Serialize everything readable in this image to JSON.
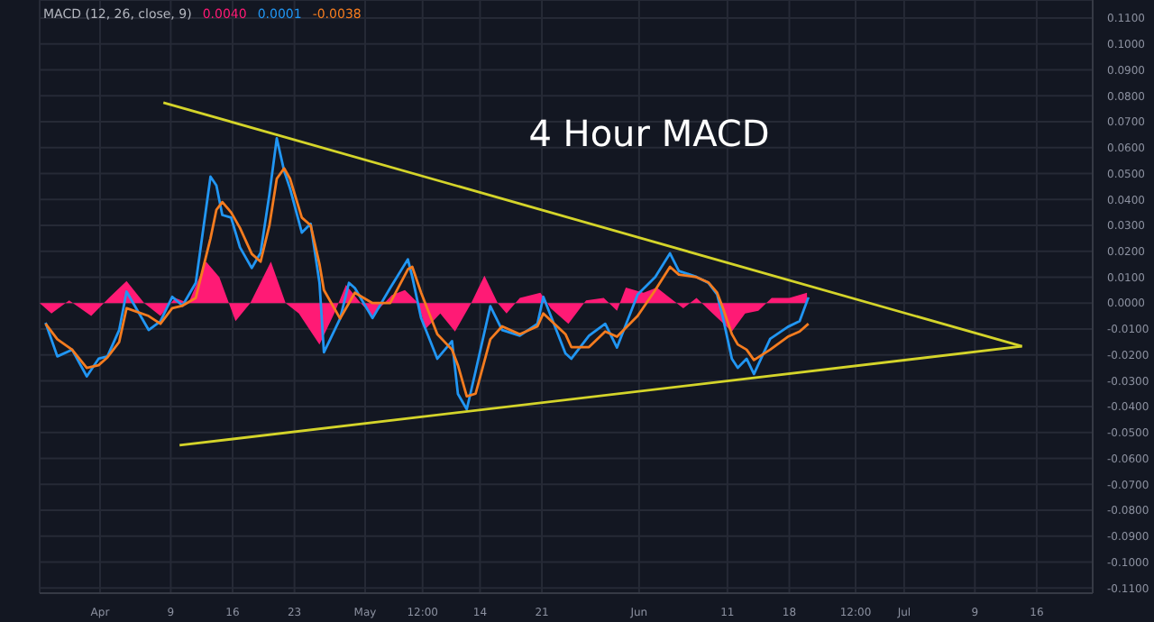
{
  "chart_data": {
    "type": "line",
    "title": "4 Hour MACD",
    "legend_title": "MACD (12, 26, close, 9)",
    "annotations": [
      "0.0040",
      "0.0001",
      "-0.0038"
    ],
    "xlim": [
      "--03-25T04:00",
      "--07-22T08:00"
    ],
    "ylim": [
      -0.112,
      0.117
    ],
    "xticks": [
      {
        "value": "--04-01",
        "label": "Apr"
      },
      {
        "value": "--04-09",
        "label": "9"
      },
      {
        "value": "--04-16",
        "label": "16"
      },
      {
        "value": "--04-23",
        "label": "23"
      },
      {
        "value": "--05-01",
        "label": "May"
      },
      {
        "value": "--05-07T12:00",
        "label": "12:00"
      },
      {
        "value": "--05-14",
        "label": "14"
      },
      {
        "value": "--05-21",
        "label": "21"
      },
      {
        "value": "--06-01",
        "label": "Jun"
      },
      {
        "value": "--06-11",
        "label": "11"
      },
      {
        "value": "--06-18",
        "label": "18"
      },
      {
        "value": "--06-25T12:00",
        "label": "12:00"
      },
      {
        "value": "--07-01",
        "label": "Jul"
      },
      {
        "value": "--07-09",
        "label": "9"
      },
      {
        "value": "--07-16",
        "label": "16"
      }
    ],
    "yticks": [
      {
        "value": 0.11,
        "label": "0.1100"
      },
      {
        "value": 0.1,
        "label": "0.1000"
      },
      {
        "value": 0.09,
        "label": "0.0900"
      },
      {
        "value": 0.08,
        "label": "0.0800"
      },
      {
        "value": 0.07,
        "label": "0.0700"
      },
      {
        "value": 0.06,
        "label": "0.0600"
      },
      {
        "value": 0.05,
        "label": "0.0500"
      },
      {
        "value": 0.04,
        "label": "0.0400"
      },
      {
        "value": 0.03,
        "label": "0.0300"
      },
      {
        "value": 0.02,
        "label": "0.0200"
      },
      {
        "value": 0.01,
        "label": "0.0100"
      },
      {
        "value": 0,
        "label": "0.0000"
      },
      {
        "value": -0.01,
        "label": "-0.0100"
      },
      {
        "value": -0.02,
        "label": "-0.0200"
      },
      {
        "value": -0.03,
        "label": "-0.0300"
      },
      {
        "value": -0.04,
        "label": "-0.0400"
      },
      {
        "value": -0.05,
        "label": "-0.0500"
      },
      {
        "value": -0.06,
        "label": "-0.0600"
      },
      {
        "value": -0.07,
        "label": "-0.0700"
      },
      {
        "value": -0.08,
        "label": "-0.0800"
      },
      {
        "value": -0.09,
        "label": "-0.0900"
      },
      {
        "value": -0.1,
        "label": "-0.1000"
      },
      {
        "value": -0.11,
        "label": "-0.1100"
      }
    ],
    "grid": true,
    "marker": "none",
    "line_style": "solid",
    "series": [
      {
        "type": "area",
        "color": "#ff1a75",
        "x": [
          "--03-25T04:00",
          "--03-26T12:00",
          "--03-28T12:00",
          "--03-31T00:00",
          "--04-02T00:00",
          "--04-04T00:00",
          "--04-06T00:00",
          "--04-07T20:00",
          "--04-09T12:00",
          "--04-11T00:00",
          "--04-13T00:00",
          "--04-14T12:00",
          "--04-16T08:00",
          "--04-18T00:00",
          "--04-20T08:00",
          "--04-22T00:00",
          "--04-23T12:00",
          "--04-25T20:00",
          "--04-27T12:00",
          "--04-28T20:00",
          "--04-30T12:00",
          "--05-01T20:00",
          "--05-04T00:00",
          "--05-05T12:00",
          "--05-07T00:00",
          "--05-07T20:00",
          "--05-09T12:00",
          "--05-11T04:00",
          "--05-13T00:00",
          "--05-14T12:00",
          "--05-16T00:00",
          "--05-17T00:00",
          "--05-18T12:00",
          "--05-20T20:00",
          "--05-22T00:00",
          "--05-24T00:00",
          "--05-26T00:00",
          "--05-28T00:00",
          "--05-29T12:00",
          "--05-30T12:00",
          "--06-01T12:00",
          "--06-03T00:00",
          "--06-04T12:00",
          "--06-06T00:00",
          "--06-07T12:00",
          "--06-09T00:00",
          "--06-11T12:00",
          "--06-13T00:00",
          "--06-14T12:00",
          "--06-16T00:00",
          "--06-18T00:00",
          "--06-20T00:00"
        ],
        "values": [
          0.0,
          -0.004,
          0.001,
          -0.005,
          0.002,
          0.0085,
          0.0,
          -0.005,
          0.002,
          0.0,
          0.016,
          0.01,
          -0.007,
          0.0,
          0.016,
          0.0,
          -0.004,
          -0.016,
          -0.004,
          0.007,
          0.0,
          -0.005,
          0.003,
          0.005,
          0.0,
          -0.01,
          -0.004,
          -0.011,
          0.0,
          0.0106,
          0.0,
          -0.004,
          0.002,
          0.004,
          -0.002,
          -0.008,
          0.001,
          0.002,
          -0.003,
          0.006,
          0.004,
          0.006,
          0.002,
          -0.002,
          0.002,
          -0.003,
          -0.011,
          -0.004,
          -0.003,
          0.002,
          0.002,
          0.004
        ]
      },
      {
        "type": "line",
        "color": "#2196f3",
        "x": [
          "--03-25T20:00",
          "--03-27T04:00",
          "--03-28T20:00",
          "--03-30T12:00",
          "--03-31T20:00",
          "--04-01T20:00",
          "--04-03T04:00",
          "--04-04T00:00",
          "--04-06T12:00",
          "--04-07T20:00",
          "--04-09T04:00",
          "--04-10T08:00",
          "--04-11T20:00",
          "--04-13T12:00",
          "--04-14T04:00",
          "--04-14T20:00",
          "--04-15T20:00",
          "--04-16T20:00",
          "--04-18T04:00",
          "--04-19T04:00",
          "--04-20T04:00",
          "--04-21T00:00",
          "--04-21T20:00",
          "--04-22T12:00",
          "--04-23T20:00",
          "--04-24T20:00",
          "--04-25T20:00",
          "--04-26T08:00",
          "--04-28T04:00",
          "--04-29T04:00",
          "--04-29T20:00",
          "--05-01T20:00",
          "--05-03T20:00",
          "--05-05T20:00",
          "--05-06T08:00",
          "--05-07T08:00",
          "--05-09T04:00",
          "--05-10T20:00",
          "--05-11T12:00",
          "--05-12T12:00",
          "--05-13T12:00",
          "--05-15T04:00",
          "--05-16T12:00",
          "--05-18T12:00",
          "--05-20T12:00",
          "--05-21T04:00",
          "--05-23T16:00",
          "--05-24T08:00",
          "--05-26T08:00",
          "--05-28T04:00",
          "--05-29T12:00",
          "--05-31T20:00",
          "--06-02T20:00",
          "--06-04T12:00",
          "--06-05T12:00",
          "--06-07T12:00",
          "--06-08T20:00",
          "--06-09T20:00",
          "--06-10T12:00",
          "--06-11T12:00",
          "--06-12T04:00",
          "--06-13T04:00",
          "--06-14T00:00",
          "--06-15T20:00",
          "--06-17T20:00",
          "--06-19T04:00",
          "--06-20T04:00"
        ],
        "values": [
          -0.0076,
          -0.0206,
          -0.018,
          -0.0283,
          -0.0215,
          -0.0206,
          -0.0104,
          0.0044,
          -0.0104,
          -0.007,
          0.0024,
          -0.001,
          0.0078,
          0.0488,
          0.0454,
          0.034,
          0.033,
          0.0215,
          0.0135,
          0.0194,
          0.042,
          0.0636,
          0.051,
          0.0442,
          0.0272,
          0.0306,
          0.0078,
          -0.019,
          -0.006,
          0.0078,
          0.0058,
          -0.0058,
          0.0058,
          0.0169,
          0.0101,
          -0.0058,
          -0.0215,
          -0.0147,
          -0.0351,
          -0.041,
          -0.0263,
          -0.0012,
          -0.0104,
          -0.0126,
          -0.008,
          0.0024,
          -0.0194,
          -0.0215,
          -0.0126,
          -0.008,
          -0.0172,
          0.0033,
          0.0101,
          0.0192,
          0.0124,
          0.0101,
          0.0078,
          0.0033,
          -0.0058,
          -0.0215,
          -0.025,
          -0.0215,
          -0.0274,
          -0.0138,
          -0.0092,
          -0.007,
          0.0022
        ]
      },
      {
        "type": "line",
        "color": "#f57c1f",
        "x": [
          "--03-25T20:00",
          "--03-27T04:00",
          "--03-28T20:00",
          "--03-30T12:00",
          "--03-31T20:00",
          "--04-01T20:00",
          "--04-03T04:00",
          "--04-04T00:00",
          "--04-06T12:00",
          "--04-07T20:00",
          "--04-09T04:00",
          "--04-10T08:00",
          "--04-11T20:00",
          "--04-13T12:00",
          "--04-14T04:00",
          "--04-14T20:00",
          "--04-15T20:00",
          "--04-16T20:00",
          "--04-18T04:00",
          "--04-19T04:00",
          "--04-20T04:00",
          "--04-21T00:00",
          "--04-21T20:00",
          "--04-22T12:00",
          "--04-23T20:00",
          "--04-24T20:00",
          "--04-25T20:00",
          "--04-26T08:00",
          "--04-28T04:00",
          "--04-29T04:00",
          "--04-29T20:00",
          "--05-01T20:00",
          "--05-03T20:00",
          "--05-05T20:00",
          "--05-06T08:00",
          "--05-07T08:00",
          "--05-09T04:00",
          "--05-10T20:00",
          "--05-11T12:00",
          "--05-12T12:00",
          "--05-13T12:00",
          "--05-15T04:00",
          "--05-16T12:00",
          "--05-18T12:00",
          "--05-20T12:00",
          "--05-21T04:00",
          "--05-23T16:00",
          "--05-24T08:00",
          "--05-26T08:00",
          "--05-28T04:00",
          "--05-29T12:00",
          "--05-31T20:00",
          "--06-02T20:00",
          "--06-04T12:00",
          "--06-05T12:00",
          "--06-07T12:00",
          "--06-08T20:00",
          "--06-09T20:00",
          "--06-10T12:00",
          "--06-11T12:00",
          "--06-12T04:00",
          "--06-13T04:00",
          "--06-14T00:00",
          "--06-15T20:00",
          "--06-17T20:00",
          "--06-19T04:00",
          "--06-20T04:00"
        ],
        "values": [
          -0.008,
          -0.014,
          -0.018,
          -0.025,
          -0.024,
          -0.021,
          -0.015,
          -0.002,
          -0.005,
          -0.008,
          -0.002,
          -0.001,
          0.002,
          0.025,
          0.036,
          0.039,
          0.035,
          0.029,
          0.019,
          0.016,
          0.03,
          0.048,
          0.052,
          0.048,
          0.033,
          0.03,
          0.015,
          0.005,
          -0.006,
          0.0,
          0.004,
          0.0,
          0.0,
          0.013,
          0.014,
          0.004,
          -0.012,
          -0.018,
          -0.024,
          -0.036,
          -0.035,
          -0.014,
          -0.009,
          -0.012,
          -0.009,
          -0.004,
          -0.012,
          -0.017,
          -0.017,
          -0.011,
          -0.013,
          -0.005,
          0.005,
          0.014,
          0.011,
          0.01,
          0.008,
          0.004,
          -0.002,
          -0.012,
          -0.016,
          -0.018,
          -0.022,
          -0.018,
          -0.013,
          -0.011,
          -0.008
        ]
      },
      {
        "type": "line",
        "color": "#d4d42a",
        "x": [
          "--04-08T04:00",
          "--07-14T08:00"
        ],
        "values": [
          0.0774,
          -0.0167
        ]
      },
      {
        "type": "line",
        "color": "#d4d42a",
        "x": [
          "--04-10T00:00",
          "--07-14T08:00"
        ],
        "values": [
          -0.0549,
          -0.0167
        ]
      }
    ]
  }
}
